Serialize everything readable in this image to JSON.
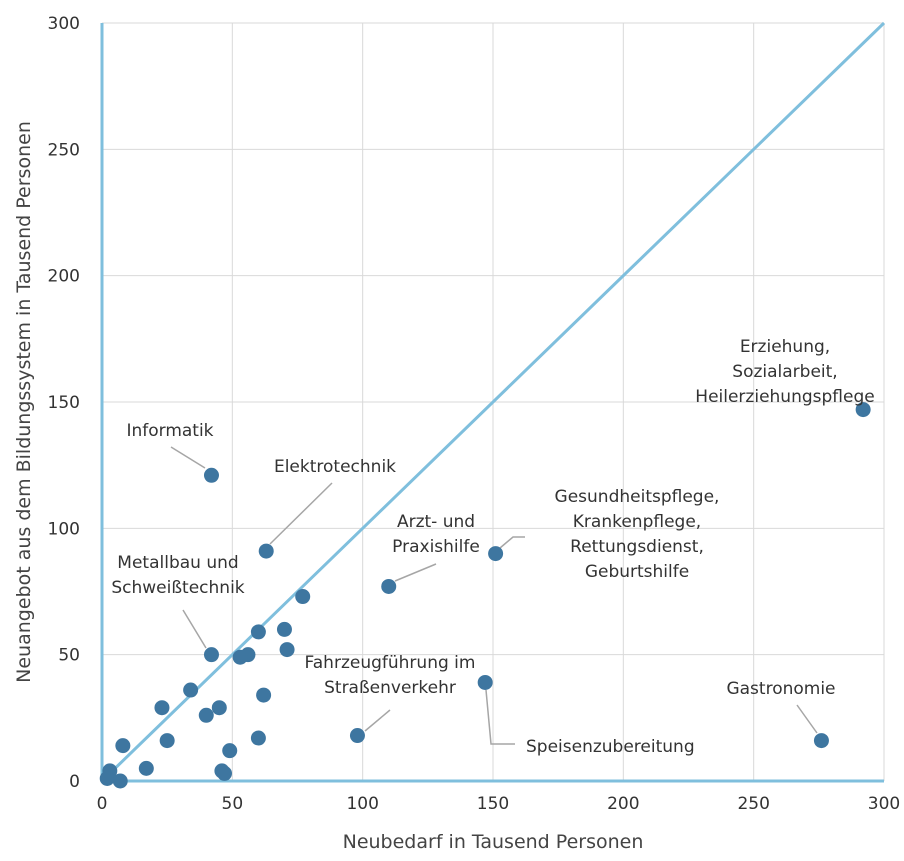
{
  "chart_data": {
    "type": "scatter",
    "xlabel": "Neubedarf in Tausend Personen",
    "ylabel": "Neuangebot aus dem Bildungssystem in Tausend Personen",
    "xlim": [
      0,
      300
    ],
    "ylim": [
      0,
      300
    ],
    "xticks": [
      0,
      50,
      100,
      150,
      200,
      250,
      300
    ],
    "yticks": [
      0,
      50,
      100,
      150,
      200,
      250,
      300
    ],
    "grid": true,
    "reference_line": {
      "from": [
        0,
        0
      ],
      "to": [
        300,
        300
      ]
    },
    "colors": {
      "point": "#3E76A0",
      "diagonal": "#7FBFDD",
      "grid": "#D9D9D9",
      "leader": "#A6A6A6"
    },
    "points": [
      {
        "x": 292,
        "y": 147,
        "label_lines": [
          "Erziehung,",
          "Sozialarbeit,",
          "Heilerziehungspflege"
        ]
      },
      {
        "x": 42,
        "y": 121,
        "label_lines": [
          "Informatik"
        ]
      },
      {
        "x": 63,
        "y": 91,
        "label_lines": [
          "Elektrotechnik"
        ]
      },
      {
        "x": 110,
        "y": 77,
        "label_lines": [
          "Arzt- und",
          "Praxishilfe"
        ]
      },
      {
        "x": 151,
        "y": 90,
        "label_lines": [
          "Gesundheitspflege,",
          "Krankenpflege,",
          "Rettungsdienst,",
          "Geburtshilfe"
        ]
      },
      {
        "x": 42,
        "y": 50,
        "label_lines": [
          "Metallbau und",
          "Schweißtechnik"
        ]
      },
      {
        "x": 98,
        "y": 18,
        "label_lines": [
          "Fahrzeugführung im",
          "Straßenverkehr"
        ]
      },
      {
        "x": 147,
        "y": 39,
        "label_lines": [
          "Speisenzubereitung"
        ]
      },
      {
        "x": 276,
        "y": 16,
        "label_lines": [
          "Gastronomie"
        ]
      },
      {
        "x": 77,
        "y": 73
      },
      {
        "x": 70,
        "y": 60
      },
      {
        "x": 60,
        "y": 59
      },
      {
        "x": 71,
        "y": 52
      },
      {
        "x": 56,
        "y": 50
      },
      {
        "x": 53,
        "y": 49
      },
      {
        "x": 62,
        "y": 34
      },
      {
        "x": 34,
        "y": 36
      },
      {
        "x": 23,
        "y": 29
      },
      {
        "x": 45,
        "y": 29
      },
      {
        "x": 40,
        "y": 26
      },
      {
        "x": 60,
        "y": 17
      },
      {
        "x": 25,
        "y": 16
      },
      {
        "x": 8,
        "y": 14
      },
      {
        "x": 49,
        "y": 12
      },
      {
        "x": 17,
        "y": 5
      },
      {
        "x": 46,
        "y": 4
      },
      {
        "x": 47,
        "y": 3
      },
      {
        "x": 3,
        "y": 4
      },
      {
        "x": 2,
        "y": 1
      },
      {
        "x": 7,
        "y": 0
      }
    ]
  }
}
